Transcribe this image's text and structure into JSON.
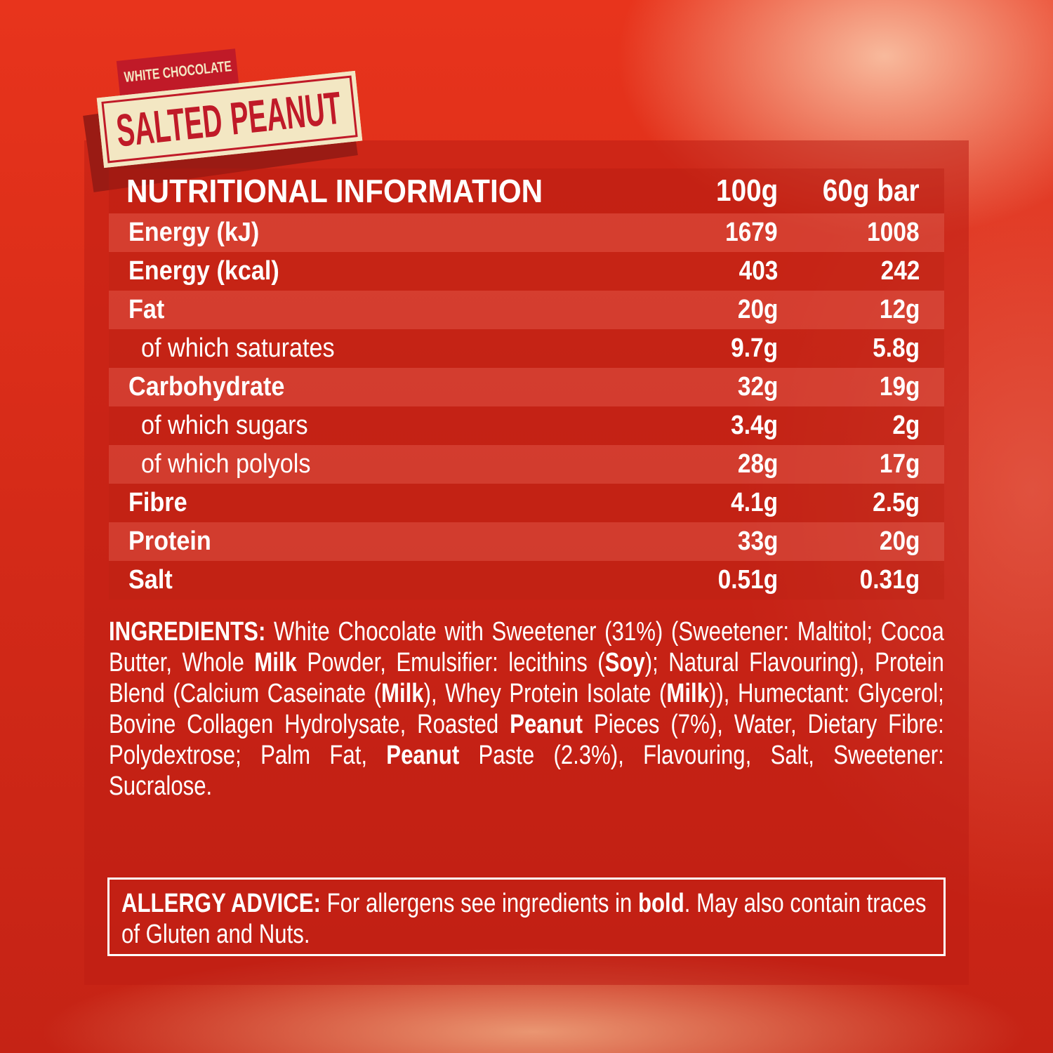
{
  "brand": {
    "flavour_top": "WHITE CHOCOLATE",
    "flavour_main_1": "SALTED",
    "flavour_main_2": "PEANUT"
  },
  "colors": {
    "background": "#d42a18",
    "logo_cream": "#f3e7c3",
    "logo_red": "#c01a28"
  },
  "nutrition": {
    "title": "NUTRITIONAL INFORMATION",
    "col_100g": "100g",
    "col_bar": "60g bar",
    "rows": [
      {
        "label": "Energy (kJ)",
        "per100": "1679",
        "perBar": "1008",
        "sub": false
      },
      {
        "label": "Energy (kcal)",
        "per100": "403",
        "perBar": "242",
        "sub": false
      },
      {
        "label": "Fat",
        "per100": "20g",
        "perBar": "12g",
        "sub": false
      },
      {
        "label": "of which saturates",
        "per100": "9.7g",
        "perBar": "5.8g",
        "sub": true
      },
      {
        "label": "Carbohydrate",
        "per100": "32g",
        "perBar": "19g",
        "sub": false
      },
      {
        "label": "of which sugars",
        "per100": "3.4g",
        "perBar": "2g",
        "sub": true
      },
      {
        "label": "of which polyols",
        "per100": "28g",
        "perBar": "17g",
        "sub": true
      },
      {
        "label": "Fibre",
        "per100": "4.1g",
        "perBar": "2.5g",
        "sub": false
      },
      {
        "label": "Protein",
        "per100": "33g",
        "perBar": "20g",
        "sub": false
      },
      {
        "label": "Salt",
        "per100": "0.51g",
        "perBar": "0.31g",
        "sub": false
      }
    ]
  },
  "ingredients": [
    {
      "t": "INGREDIENTS:",
      "b": true
    },
    {
      "t": " White Chocolate with Sweetener (31%) (Sweetener: Maltitol; Cocoa Butter, Whole ",
      "b": false
    },
    {
      "t": "Milk",
      "b": true
    },
    {
      "t": " Powder, Emulsifier: lecithins (",
      "b": false
    },
    {
      "t": "Soy",
      "b": true
    },
    {
      "t": "); Natural Flavouring), Protein Blend (Calcium Caseinate (",
      "b": false
    },
    {
      "t": "Milk",
      "b": true
    },
    {
      "t": "), Whey Protein Isolate (",
      "b": false
    },
    {
      "t": "Milk",
      "b": true
    },
    {
      "t": ")), Humectant: Glycerol; Bovine Collagen Hydrolysate, Roasted ",
      "b": false
    },
    {
      "t": "Peanut",
      "b": true
    },
    {
      "t": " Pieces (7%), Water, Dietary Fibre: Polydextrose; Palm Fat, ",
      "b": false
    },
    {
      "t": "Peanut",
      "b": true
    },
    {
      "t": " Paste (2.3%), Flavouring, Salt, Sweetener: Sucralose.",
      "b": false
    }
  ],
  "allergy": [
    {
      "t": "ALLERGY ADVICE:",
      "b": true
    },
    {
      "t": " For allergens see ingredients in ",
      "b": false
    },
    {
      "t": "bold",
      "b": true
    },
    {
      "t": ". May also contain traces of Gluten and Nuts.",
      "b": false
    }
  ]
}
